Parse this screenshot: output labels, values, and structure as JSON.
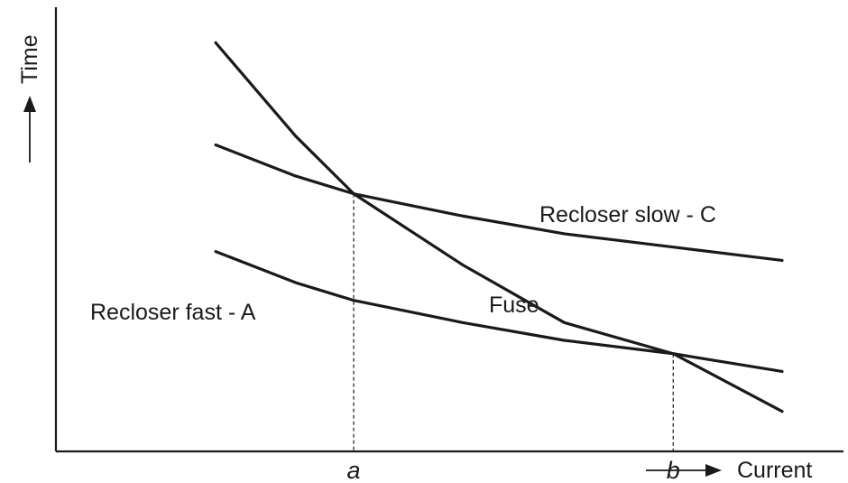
{
  "chart_data": {
    "type": "line",
    "title": "",
    "xlabel": "Current",
    "ylabel": "Time",
    "xlim": [
      0,
      10
    ],
    "ylim": [
      0,
      10
    ],
    "grid": false,
    "legend": "none",
    "x_ticks": [
      {
        "label": "a",
        "value": 4.1
      },
      {
        "label": "b",
        "value": 8.5
      }
    ],
    "series": [
      {
        "name": "Recloser slow - C",
        "x": [
          2.2,
          3.3,
          4.1,
          5.6,
          7.0,
          8.5,
          10.0
        ],
        "y": [
          6.9,
          6.2,
          5.8,
          5.3,
          4.9,
          4.6,
          4.3
        ]
      },
      {
        "name": "Fuse",
        "x": [
          2.2,
          3.3,
          4.1,
          5.6,
          7.0,
          8.5,
          10.0
        ],
        "y": [
          9.2,
          7.1,
          5.8,
          4.2,
          2.9,
          2.2,
          0.9
        ]
      },
      {
        "name": "Recloser fast - A",
        "x": [
          2.2,
          3.3,
          4.1,
          5.6,
          7.0,
          8.5,
          10.0
        ],
        "y": [
          4.5,
          3.8,
          3.4,
          2.9,
          2.5,
          2.2,
          1.8
        ]
      }
    ]
  }
}
